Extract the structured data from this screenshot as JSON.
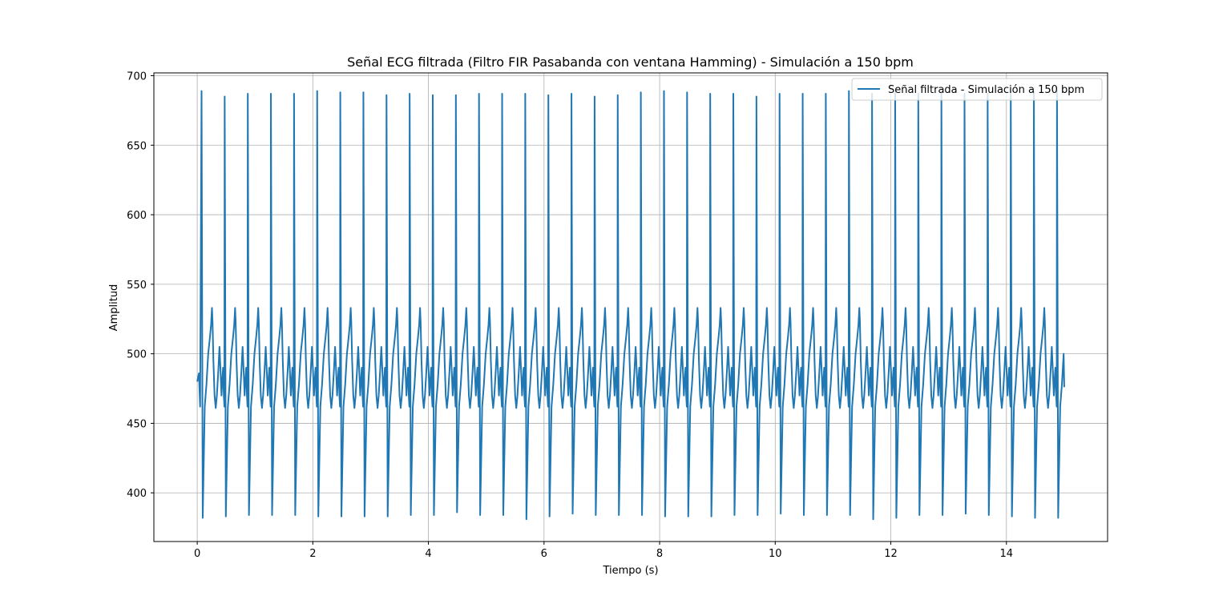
{
  "window": {
    "title": "Señal ECG filtrada (Filtro FIR Pasabanda con ventana Hamming) - Simulación a 150 bpm"
  },
  "colors": {
    "series": "#1f77b4",
    "grid": "#b0b0b0",
    "axes": "#000000",
    "background": "#ffffff",
    "legend_border": "#cccccc"
  },
  "chart_data": {
    "type": "line",
    "title": "Señal ECG filtrada (Filtro FIR Pasabanda con ventana Hamming) - Simulación a 150 bpm",
    "xlabel": "Tiempo (s)",
    "ylabel": "Amplitud",
    "xlim": [
      -0.75,
      15.75
    ],
    "ylim": [
      365,
      702
    ],
    "xticks": [
      0,
      2,
      4,
      6,
      8,
      10,
      12,
      14
    ],
    "xtick_labels": [
      "0",
      "2",
      "4",
      "6",
      "8",
      "10",
      "12",
      "14"
    ],
    "yticks": [
      400,
      450,
      500,
      550,
      600,
      650,
      700
    ],
    "ytick_labels": [
      "400",
      "450",
      "500",
      "550",
      "600",
      "650",
      "700"
    ],
    "grid": true,
    "legend": {
      "position": "top-right",
      "entries": [
        "Señal filtrada - Simulación a 150 bpm"
      ]
    },
    "series": [
      {
        "name": "Señal filtrada - Simulación a 150 bpm",
        "color": "#1f77b4",
        "x_range": [
          0,
          15
        ],
        "beat_period_s": 0.4,
        "first_r_peak_s": 0.075,
        "r_peaks": [
          [
            0.075,
            689
          ],
          [
            0.475,
            685
          ],
          [
            0.875,
            687
          ],
          [
            1.275,
            687
          ],
          [
            1.675,
            687
          ],
          [
            2.075,
            689
          ],
          [
            2.475,
            688
          ],
          [
            2.875,
            688
          ],
          [
            3.275,
            686
          ],
          [
            3.675,
            687
          ],
          [
            4.075,
            686
          ],
          [
            4.475,
            686
          ],
          [
            4.875,
            687
          ],
          [
            5.275,
            687
          ],
          [
            5.675,
            687
          ],
          [
            6.075,
            686
          ],
          [
            6.475,
            687
          ],
          [
            6.875,
            685
          ],
          [
            7.275,
            686
          ],
          [
            7.675,
            688
          ],
          [
            8.075,
            689
          ],
          [
            8.475,
            688
          ],
          [
            8.875,
            687
          ],
          [
            9.275,
            687
          ],
          [
            9.675,
            685
          ],
          [
            10.075,
            687
          ],
          [
            10.475,
            687
          ],
          [
            10.875,
            687
          ],
          [
            11.275,
            689
          ],
          [
            11.675,
            687
          ],
          [
            12.075,
            688
          ],
          [
            12.475,
            687
          ],
          [
            12.875,
            687
          ],
          [
            13.275,
            687
          ],
          [
            13.675,
            687
          ],
          [
            14.075,
            689
          ],
          [
            14.475,
            688
          ],
          [
            14.875,
            689
          ]
        ],
        "s_troughs": [
          [
            0.095,
            382
          ],
          [
            0.495,
            383
          ],
          [
            0.895,
            384
          ],
          [
            1.295,
            384
          ],
          [
            1.695,
            384
          ],
          [
            2.095,
            383
          ],
          [
            2.495,
            383
          ],
          [
            2.895,
            383
          ],
          [
            3.295,
            383
          ],
          [
            3.695,
            384
          ],
          [
            4.095,
            384
          ],
          [
            4.495,
            386
          ],
          [
            4.895,
            384
          ],
          [
            5.295,
            384
          ],
          [
            5.695,
            381
          ],
          [
            6.095,
            383
          ],
          [
            6.495,
            385
          ],
          [
            6.895,
            384
          ],
          [
            7.295,
            384
          ],
          [
            7.695,
            384
          ],
          [
            8.095,
            383
          ],
          [
            8.495,
            383
          ],
          [
            8.895,
            383
          ],
          [
            9.295,
            384
          ],
          [
            9.695,
            384
          ],
          [
            10.095,
            385
          ],
          [
            10.495,
            384
          ],
          [
            10.895,
            384
          ],
          [
            11.295,
            384
          ],
          [
            11.695,
            381
          ],
          [
            12.095,
            382
          ],
          [
            12.495,
            384
          ],
          [
            12.895,
            384
          ],
          [
            13.295,
            385
          ],
          [
            13.695,
            384
          ],
          [
            14.095,
            383
          ],
          [
            14.495,
            382
          ],
          [
            14.895,
            382
          ]
        ],
        "t_wave_peak_approx": 533,
        "baseline_low_approx": 460,
        "p_wave_peak_approx": 505,
        "start_value": 480,
        "end_value": 476
      }
    ]
  }
}
